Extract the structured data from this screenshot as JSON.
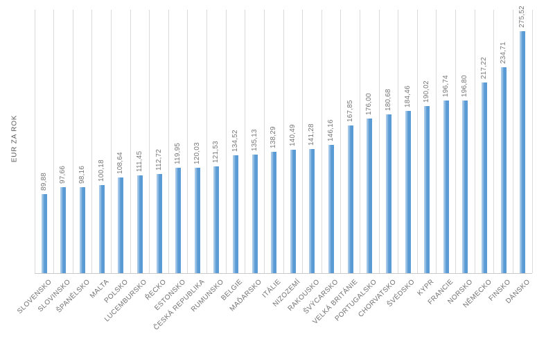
{
  "chart_data": {
    "type": "bar",
    "title": "",
    "xlabel": "",
    "ylabel": "EUR ZA ROK",
    "ylim": [
      0,
      300
    ],
    "grid": "vertical category separators only",
    "legend_position": "none",
    "bar_color": "#5B9BD5",
    "gridline_color": "#DADADA",
    "axis_line_color": "#C9C9C9",
    "label_color": "#767676",
    "categories": [
      "SLOVENSKO",
      "SLOVINSKO",
      "ŠPANĚLSKO",
      "MALTA",
      "POLSKO",
      "LUCEMBURSKO",
      "ŘECKO",
      "ESTONSKO",
      "ČESKÁ REPUBLIKA",
      "RUMUNSKO",
      "BELGIE",
      "MAĎARSKO",
      "ITÁLIE",
      "NIZOZEMÍ",
      "RAKOUSKO",
      "ŠVÝCARSKO",
      "VELKÁ BRITÁNIE",
      "PORTUGALSKO",
      "CHORVATSKO",
      "ŠVÉDSKO",
      "KYPR",
      "FRANCIE",
      "NORSKO",
      "NĚMECKO",
      "FINSKO",
      "DÁNSKO"
    ],
    "values": [
      89.88,
      97.66,
      98.16,
      100.18,
      108.64,
      111.45,
      112.72,
      119.95,
      120.03,
      121.53,
      134.52,
      135.13,
      138.29,
      140.49,
      141.28,
      146.16,
      167.85,
      176.0,
      180.68,
      184.46,
      190.02,
      196.74,
      196.8,
      217.22,
      234.71,
      275.52
    ],
    "value_labels": [
      "89,88",
      "97,66",
      "98,16",
      "100,18",
      "108,64",
      "111,45",
      "112,72",
      "119,95",
      "120,03",
      "121,53",
      "134,52",
      "135,13",
      "138,29",
      "140,49",
      "141,28",
      "146,16",
      "167,85",
      "176,00",
      "180,68",
      "184,46",
      "190,02",
      "196,74",
      "196,80",
      "217,22",
      "234,71",
      "275,52"
    ]
  }
}
